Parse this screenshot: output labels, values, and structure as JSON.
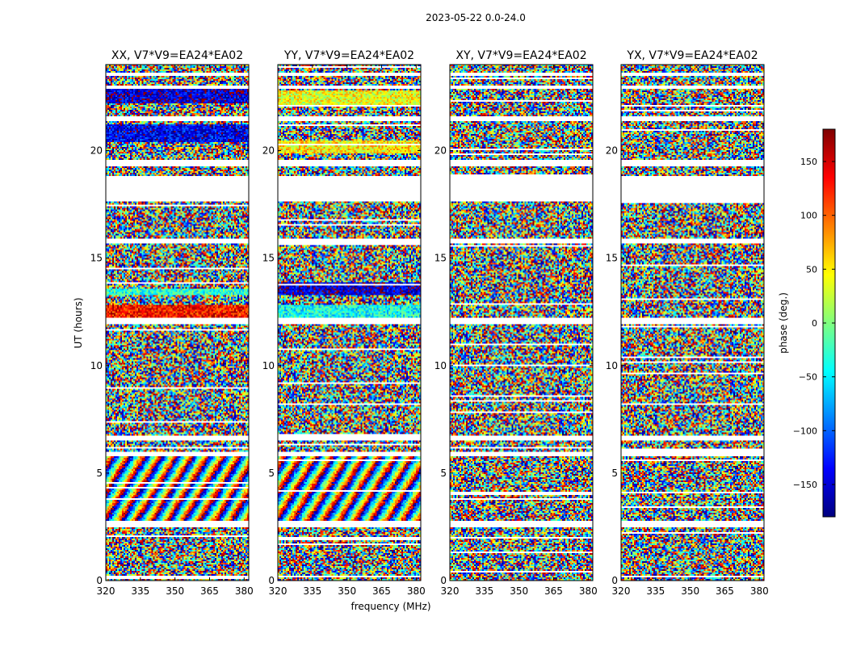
{
  "suptitle": "2023-05-22 0.0-24.0",
  "colorbar": {
    "label": "phase (deg.)",
    "vmin": -180,
    "vmax": 180,
    "ticks": [
      -150,
      -100,
      -50,
      0,
      50,
      100,
      150
    ],
    "tick_labels": [
      "−150",
      "−100",
      "−50",
      "0",
      "50",
      "100",
      "150"
    ],
    "colormap": [
      "#00007f",
      "#0000ff",
      "#007fff",
      "#00ffff",
      "#7fff7f",
      "#ffff00",
      "#ff7f00",
      "#ff0000",
      "#7f0000"
    ]
  },
  "chart_data": {
    "type": "heatmap",
    "xlabel": "frequency (MHz)",
    "ylabel": "UT (hours)",
    "xlim": [
      320,
      382
    ],
    "ylim": [
      0,
      24
    ],
    "x_ticks": [
      320,
      335,
      350,
      365,
      380
    ],
    "x_tick_labels": [
      "320",
      "335",
      "350",
      "365",
      "380"
    ],
    "y_ticks": [
      0,
      5,
      10,
      15,
      20
    ],
    "y_tick_labels": [
      "0",
      "5",
      "10",
      "15",
      "20"
    ],
    "value_quantity": "phase (deg.)",
    "flagged_time_ranges_hours": [
      [
        23.5,
        23.65
      ],
      [
        22.9,
        23.05
      ],
      [
        21.4,
        21.6
      ],
      [
        19.3,
        19.6
      ],
      [
        17.6,
        18.8
      ],
      [
        15.7,
        15.9
      ],
      [
        11.9,
        12.2
      ],
      [
        6.5,
        6.75
      ],
      [
        5.8,
        6.0
      ],
      [
        2.5,
        2.75
      ]
    ],
    "panels": [
      {
        "title": "XX, V7*V9=EA24*EA02",
        "coherent_bands_hours": [
          [
            12.1,
            12.8
          ],
          [
            13.3,
            13.6
          ],
          [
            20.4,
            21.2
          ],
          [
            22.2,
            23.0
          ]
        ],
        "band_phase_deg": [
          130,
          -30,
          -140,
          -150
        ]
      },
      {
        "title": "YY, V7*V9=EA24*EA02",
        "coherent_bands_hours": [
          [
            12.2,
            12.8
          ],
          [
            13.3,
            13.9
          ],
          [
            19.9,
            20.5
          ],
          [
            22.1,
            22.8
          ]
        ],
        "band_phase_deg": [
          -40,
          -150,
          50,
          40
        ]
      },
      {
        "title": "XY, V7*V9=EA24*EA02",
        "coherent_bands_hours": [],
        "band_phase_deg": []
      },
      {
        "title": "YX, V7*V9=EA24*EA02",
        "coherent_bands_hours": [],
        "band_phase_deg": []
      }
    ]
  }
}
